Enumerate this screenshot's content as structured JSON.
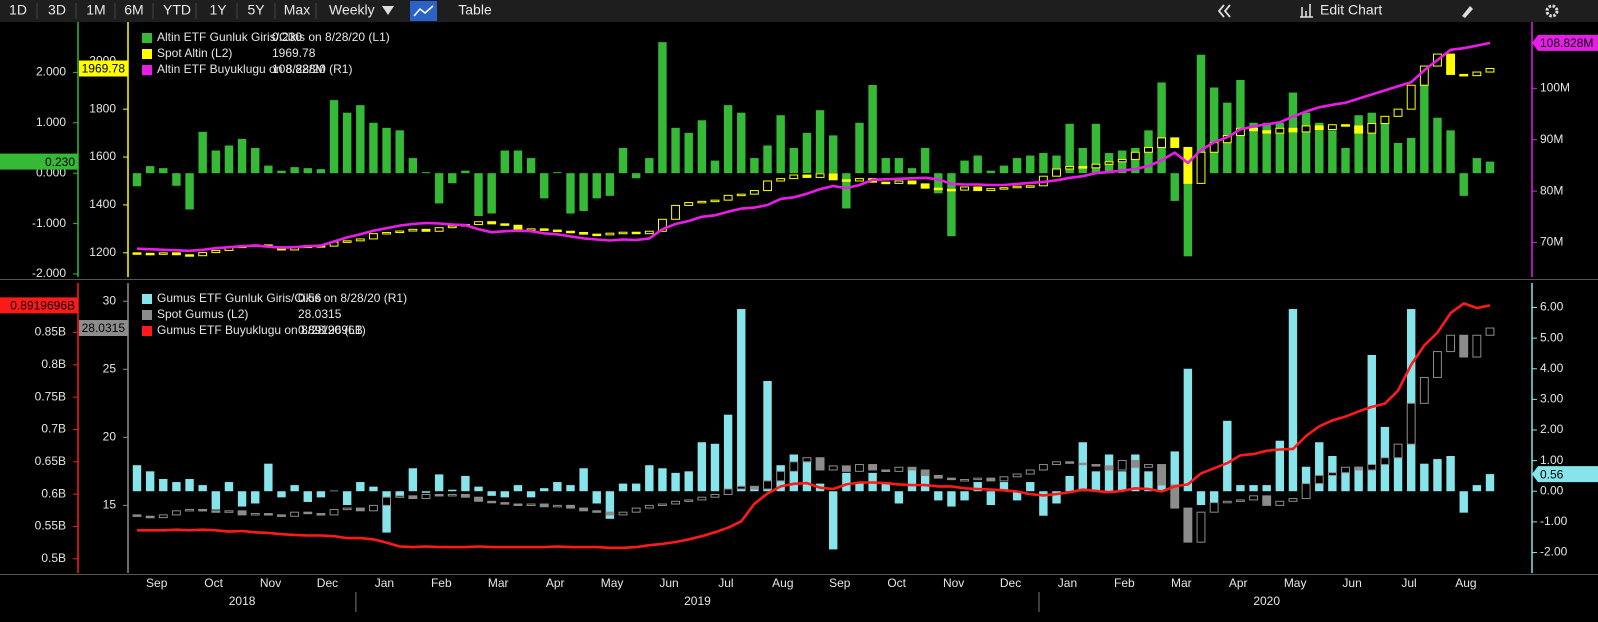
{
  "toolbar": {
    "ranges": [
      "1D",
      "3D",
      "1M",
      "6M",
      "YTD",
      "1Y",
      "5Y",
      "Max"
    ],
    "frequency": "Weekly",
    "table": "Table",
    "edit": "Edit Chart"
  },
  "x_axis": {
    "months": [
      "Sep",
      "Oct",
      "Nov",
      "Dec",
      "Jan",
      "Feb",
      "Mar",
      "Apr",
      "May",
      "Jun",
      "Jul",
      "Aug",
      "Sep",
      "Oct",
      "Nov",
      "Dec",
      "Jan",
      "Feb",
      "Mar",
      "Apr",
      "May",
      "Jun",
      "Jul",
      "Aug"
    ],
    "years": [
      "2018",
      "2019",
      "2020"
    ]
  },
  "chart_data": [
    {
      "type": "combo",
      "ylim": [
        -2.06,
        3.0
      ],
      "yticks": [
        {
          "value": -2,
          "label": "-2.000"
        },
        {
          "value": -1,
          "label": "-1.000"
        },
        {
          "value": 0,
          "label": "0.000"
        },
        {
          "value": 1,
          "label": "1.000"
        },
        {
          "value": 2,
          "label": "2.000"
        }
      ],
      "y2lim": [
        1099,
        2164
      ],
      "y2ticks": [
        1200,
        1400,
        1600,
        1800,
        2000
      ],
      "y3lim": [
        63.3,
        112.9
      ],
      "y3ticks": [
        {
          "value": 70,
          "label": "70M"
        },
        {
          "value": 80,
          "label": "80M"
        },
        {
          "value": 90,
          "label": "90M"
        },
        {
          "value": 100,
          "label": "100M"
        }
      ],
      "series": [
        {
          "name": "Altin ETF Gunluk Giris/Cikis on 8/28/20 (L1)",
          "type": "bar",
          "axis": "y",
          "color": "#36b936",
          "value_label": "0.230",
          "values": [
            -0.26,
            0.14,
            0.1,
            -0.25,
            -0.72,
            0.82,
            0.45,
            0.55,
            0.68,
            0.5,
            0.15,
            0.05,
            0.12,
            0.1,
            0.08,
            1.45,
            1.2,
            1.35,
            1.0,
            0.9,
            0.85,
            0.3,
            0.02,
            -0.6,
            -0.2,
            0.05,
            -0.85,
            -0.8,
            0.45,
            0.45,
            0.3,
            -0.5,
            0.02,
            -0.8,
            -0.75,
            -0.5,
            -0.45,
            0.5,
            -0.1,
            0.3,
            2.6,
            0.9,
            0.8,
            1.05,
            0.25,
            1.35,
            1.2,
            0.3,
            0.55,
            1.15,
            0.5,
            0.8,
            1.25,
            0.75,
            -0.7,
            1.0,
            1.75,
            0.3,
            0.3,
            0.1,
            0.5,
            -0.4,
            -1.25,
            0.25,
            0.35,
            0.05,
            0.15,
            0.3,
            0.35,
            0.4,
            0.35,
            0.98,
            0.5,
            0.98,
            0.4,
            0.45,
            0.5,
            0.85,
            1.8,
            -0.55,
            -1.65,
            2.35,
            1.7,
            1.4,
            1.85,
            1.0,
            1.0,
            1.0,
            1.6,
            1.2,
            1.0,
            0.85,
            0.5,
            1.15,
            1.2,
            1.0,
            0.6,
            0.7,
            2.1,
            1.1,
            0.85,
            -0.45,
            0.3,
            0.23
          ]
        },
        {
          "name": "Spot Altin (L2)",
          "type": "candlestick",
          "axis": "y2",
          "color": "#ffff00",
          "value_label": "1969.78",
          "open": [
            1200,
            1198,
            1195,
            1200,
            1192,
            1188,
            1201,
            1210,
            1222,
            1228,
            1233,
            1225,
            1212,
            1222,
            1230,
            1228,
            1245,
            1250,
            1258,
            1280,
            1285,
            1291,
            1298,
            1290,
            1305,
            1312,
            1318,
            1330,
            1321,
            1315,
            1298,
            1300,
            1295,
            1290,
            1285,
            1278,
            1275,
            1282,
            1286,
            1280,
            1290,
            1340,
            1398,
            1410,
            1415,
            1420,
            1440,
            1445,
            1460,
            1500,
            1510,
            1525,
            1515,
            1530,
            1505,
            1500,
            1510,
            1495,
            1490,
            1500,
            1488,
            1470,
            1465,
            1462,
            1475,
            1460,
            1468,
            1472,
            1478,
            1480,
            1520,
            1550,
            1560,
            1555,
            1570,
            1580,
            1590,
            1620,
            1640,
            1680,
            1640,
            1490,
            1620,
            1660,
            1690,
            1720,
            1710,
            1700,
            1720,
            1705,
            1730,
            1715,
            1735,
            1730,
            1700,
            1740,
            1770,
            1800,
            1900,
            1980,
            2030,
            1945,
            1940,
            1955
          ],
          "close": [
            1198,
            1195,
            1200,
            1192,
            1188,
            1201,
            1210,
            1222,
            1228,
            1233,
            1225,
            1212,
            1222,
            1230,
            1228,
            1245,
            1250,
            1258,
            1280,
            1285,
            1291,
            1298,
            1290,
            1305,
            1312,
            1318,
            1330,
            1321,
            1315,
            1298,
            1300,
            1295,
            1290,
            1285,
            1278,
            1275,
            1282,
            1286,
            1280,
            1290,
            1340,
            1398,
            1410,
            1415,
            1420,
            1440,
            1445,
            1460,
            1500,
            1510,
            1525,
            1515,
            1530,
            1505,
            1500,
            1510,
            1495,
            1490,
            1500,
            1488,
            1470,
            1465,
            1462,
            1475,
            1460,
            1468,
            1472,
            1478,
            1480,
            1520,
            1550,
            1560,
            1555,
            1570,
            1580,
            1590,
            1620,
            1640,
            1680,
            1640,
            1490,
            1620,
            1660,
            1690,
            1720,
            1710,
            1700,
            1720,
            1705,
            1730,
            1715,
            1735,
            1730,
            1700,
            1740,
            1770,
            1800,
            1900,
            1980,
            2030,
            1945,
            1940,
            1955,
            1969.78
          ]
        },
        {
          "name": "Altin ETF Buyuklugu on 8/28/20 (R1)",
          "type": "line",
          "axis": "y3",
          "color": "#e81ee8",
          "value_label": "108.828M",
          "values": [
            68.8,
            68.7,
            68.6,
            68.5,
            68.4,
            68.6,
            68.9,
            69.1,
            69.3,
            69.4,
            69.2,
            69.0,
            69.1,
            69.3,
            69.4,
            70.2,
            71.0,
            71.6,
            72.3,
            72.8,
            73.3,
            73.6,
            73.8,
            73.7,
            73.5,
            73.4,
            72.6,
            72.0,
            72.2,
            72.3,
            72.2,
            71.8,
            71.6,
            71.2,
            70.8,
            70.6,
            70.4,
            70.6,
            70.5,
            70.8,
            72.6,
            73.6,
            74.2,
            75.0,
            75.3,
            76.0,
            76.6,
            76.8,
            77.3,
            78.5,
            78.8,
            79.5,
            80.4,
            81.0,
            80.6,
            81.2,
            82.2,
            82.3,
            82.4,
            82.5,
            82.6,
            82.3,
            81.4,
            81.3,
            81.3,
            81.2,
            81.2,
            81.4,
            81.6,
            81.8,
            82.1,
            82.6,
            82.9,
            83.5,
            83.7,
            84.0,
            84.3,
            84.9,
            86.0,
            87.5,
            85.5,
            88.0,
            89.5,
            90.5,
            92.0,
            92.6,
            93.0,
            93.4,
            94.5,
            95.5,
            96.3,
            96.8,
            97.2,
            98.0,
            98.8,
            99.6,
            100.4,
            101.2,
            103.5,
            105.5,
            107.5,
            107.8,
            108.3,
            108.828
          ]
        }
      ]
    },
    {
      "type": "combo",
      "ylim": [
        0.478,
        0.9266
      ],
      "yticks": [
        {
          "value": 0.5,
          "label": "0.5B"
        },
        {
          "value": 0.55,
          "label": "0.55B"
        },
        {
          "value": 0.6,
          "label": "0.6B"
        },
        {
          "value": 0.65,
          "label": "0.65B"
        },
        {
          "value": 0.7,
          "label": "0.7B"
        },
        {
          "value": 0.75,
          "label": "0.75B"
        },
        {
          "value": 0.8,
          "label": "0.8B"
        },
        {
          "value": 0.85,
          "label": "0.85B"
        }
      ],
      "y2lim": [
        10.03,
        31.34
      ],
      "y2ticks": [
        15,
        20,
        25,
        30
      ],
      "y3lim": [
        -2.67,
        6.8
      ],
      "y3ticks": [
        {
          "value": -2,
          "label": "-2.00"
        },
        {
          "value": -1,
          "label": "-1.00"
        },
        {
          "value": 0,
          "label": "0.00"
        },
        {
          "value": 1,
          "label": "1.00"
        },
        {
          "value": 2,
          "label": "2.00"
        },
        {
          "value": 3,
          "label": "3.00"
        },
        {
          "value": 4,
          "label": "4.00"
        },
        {
          "value": 5,
          "label": "5.00"
        },
        {
          "value": 6,
          "label": "6.00"
        }
      ],
      "series": [
        {
          "name": "Gumus ETF Gunluk Giris/Cikis on 8/28/20 (R1)",
          "type": "bar",
          "axis": "y3",
          "color": "#86e4ea",
          "value_label": "0.56",
          "values": [
            0.85,
            0.65,
            0.4,
            0.3,
            0.4,
            0.2,
            -0.6,
            0.3,
            -0.5,
            -0.4,
            0.9,
            -0.2,
            0.2,
            -0.35,
            -0.2,
            0.02,
            -0.45,
            0.3,
            0.15,
            -1.35,
            -0.15,
            0.75,
            -0.05,
            0.55,
            0.05,
            0.5,
            0.15,
            -0.15,
            -0.2,
            0.2,
            -0.2,
            0.1,
            0.3,
            0.2,
            0.75,
            -0.4,
            -0.9,
            0.25,
            0.25,
            0.85,
            0.75,
            0.6,
            0.65,
            1.6,
            1.55,
            2.5,
            5.95,
            0.15,
            3.6,
            0.85,
            1.2,
            1.1,
            0.25,
            -1.9,
            0.6,
            0.3,
            0.6,
            0.3,
            -0.4,
            0.75,
            0.65,
            -0.3,
            -0.5,
            -0.3,
            0.3,
            -0.45,
            0.3,
            -0.3,
            0.3,
            -0.8,
            -0.4,
            0.5,
            1.6,
            0.65,
            1.2,
            0.65,
            1.2,
            0.65,
            0.8,
            1.3,
            4.0,
            -0.45,
            -0.4,
            2.3,
            0.2,
            0.2,
            0.2,
            1.65,
            5.95,
            0.8,
            1.6,
            1.15,
            0.7,
            0.8,
            4.45,
            2.1,
            1.25,
            5.95,
            0.9,
            1.05,
            1.15,
            -0.7,
            0.2,
            0.56
          ]
        },
        {
          "name": "Spot Gumus (L2)",
          "type": "candlestick",
          "axis": "y2",
          "color": "#8c8c8c",
          "value_label": "28.0315",
          "open": [
            14.3,
            14.2,
            14.1,
            14.3,
            14.6,
            14.7,
            14.6,
            14.5,
            14.6,
            14.3,
            14.4,
            14.3,
            14.2,
            14.5,
            14.4,
            14.3,
            14.7,
            14.8,
            14.6,
            15.0,
            15.6,
            15.7,
            15.5,
            15.8,
            15.7,
            15.8,
            15.6,
            15.3,
            15.2,
            15.1,
            15.0,
            15.1,
            14.9,
            15.0,
            14.8,
            14.6,
            14.5,
            14.3,
            14.5,
            14.8,
            15.0,
            15.1,
            15.3,
            15.4,
            15.6,
            15.8,
            16.2,
            16.4,
            16.2,
            16.8,
            17.5,
            18.2,
            18.5,
            17.6,
            17.9,
            17.5,
            18.0,
            17.6,
            17.5,
            17.8,
            17.6,
            17.2,
            17.0,
            16.9,
            16.9,
            17.0,
            16.8,
            17.1,
            17.3,
            17.6,
            18.0,
            18.2,
            18.1,
            18.0,
            17.9,
            17.6,
            18.3,
            17.8,
            18.0,
            16.5,
            14.8,
            12.3,
            14.5,
            15.2,
            15.3,
            15.4,
            15.7,
            15.0,
            15.3,
            15.5,
            16.6,
            17.2,
            17.4,
            17.8,
            17.6,
            18.0,
            18.5,
            19.5,
            22.5,
            24.4,
            26.3,
            27.5,
            25.9,
            27.5
          ],
          "close": [
            14.2,
            14.1,
            14.3,
            14.6,
            14.7,
            14.6,
            14.5,
            14.6,
            14.3,
            14.4,
            14.3,
            14.2,
            14.5,
            14.4,
            14.3,
            14.7,
            14.8,
            14.6,
            15.0,
            15.6,
            15.7,
            15.5,
            15.8,
            15.7,
            15.8,
            15.6,
            15.3,
            15.2,
            15.1,
            15.0,
            15.1,
            14.9,
            15.0,
            14.8,
            14.6,
            14.5,
            14.3,
            14.5,
            14.8,
            15.0,
            15.1,
            15.3,
            15.4,
            15.6,
            15.8,
            16.2,
            16.4,
            16.2,
            16.8,
            17.5,
            18.2,
            18.5,
            17.6,
            17.9,
            17.5,
            18.0,
            17.6,
            17.5,
            17.8,
            17.6,
            17.2,
            17.0,
            16.9,
            16.9,
            17.0,
            16.8,
            17.1,
            17.3,
            17.6,
            18.0,
            18.2,
            18.1,
            18.0,
            17.9,
            17.6,
            18.3,
            17.8,
            18.0,
            16.5,
            14.8,
            12.3,
            14.5,
            15.2,
            15.3,
            15.4,
            15.7,
            15.0,
            15.3,
            15.5,
            16.6,
            17.2,
            17.4,
            17.8,
            17.6,
            18.0,
            18.5,
            19.5,
            22.5,
            24.4,
            26.3,
            27.5,
            25.9,
            27.5,
            28.0315
          ]
        },
        {
          "name": "Gumus ETF Buyuklugu on 8/28/20 (L1)",
          "type": "line",
          "axis": "y",
          "color": "#ff1a1a",
          "value_label": "0.8919696B",
          "values": [
            0.544,
            0.544,
            0.544,
            0.545,
            0.544,
            0.545,
            0.544,
            0.542,
            0.543,
            0.541,
            0.54,
            0.538,
            0.537,
            0.536,
            0.536,
            0.535,
            0.532,
            0.532,
            0.53,
            0.525,
            0.519,
            0.518,
            0.519,
            0.518,
            0.518,
            0.518,
            0.519,
            0.518,
            0.518,
            0.518,
            0.518,
            0.518,
            0.519,
            0.518,
            0.518,
            0.518,
            0.517,
            0.517,
            0.518,
            0.521,
            0.523,
            0.526,
            0.53,
            0.535,
            0.541,
            0.548,
            0.558,
            0.585,
            0.601,
            0.612,
            0.616,
            0.617,
            0.61,
            0.608,
            0.615,
            0.618,
            0.618,
            0.617,
            0.615,
            0.614,
            0.614,
            0.612,
            0.612,
            0.609,
            0.608,
            0.607,
            0.606,
            0.604,
            0.6,
            0.598,
            0.6,
            0.603,
            0.607,
            0.605,
            0.603,
            0.605,
            0.609,
            0.608,
            0.604,
            0.612,
            0.615,
            0.632,
            0.64,
            0.648,
            0.66,
            0.662,
            0.667,
            0.669,
            0.67,
            0.69,
            0.705,
            0.714,
            0.72,
            0.728,
            0.735,
            0.74,
            0.76,
            0.8,
            0.83,
            0.85,
            0.88,
            0.895,
            0.888,
            0.8919696
          ]
        }
      ]
    }
  ]
}
